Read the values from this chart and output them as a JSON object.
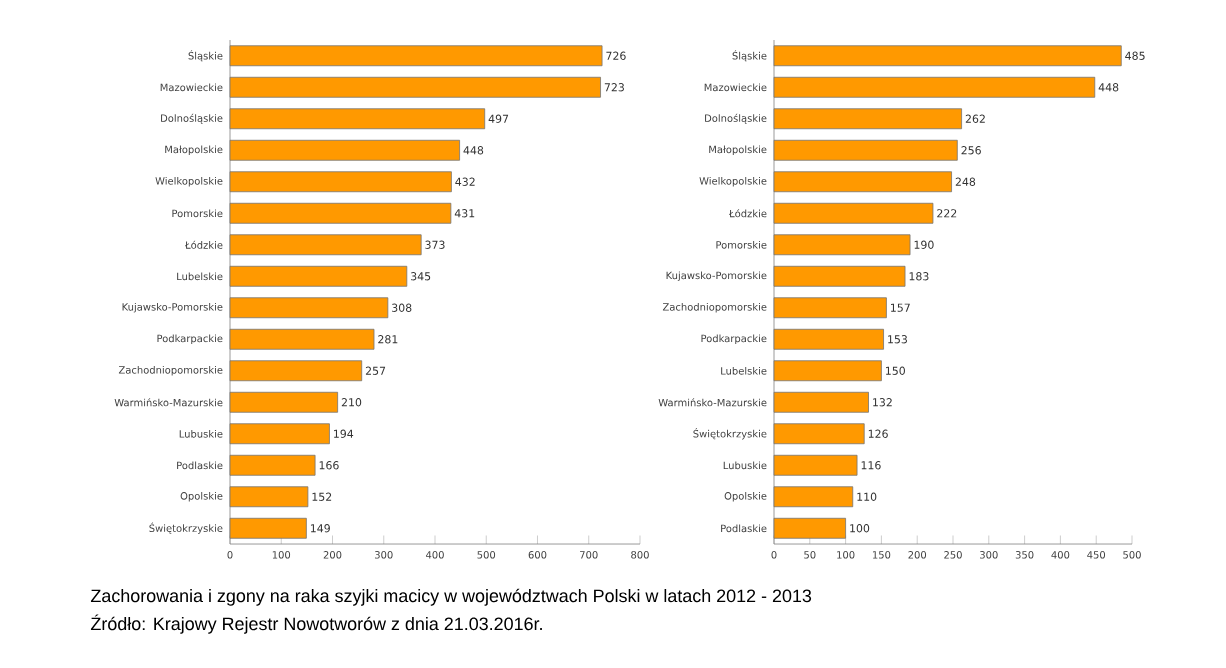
{
  "chart_data": [
    {
      "type": "bar",
      "orientation": "horizontal",
      "categories": [
        "Śląskie",
        "Mazowieckie",
        "Dolnośląskie",
        "Małopolskie",
        "Wielkopolskie",
        "Pomorskie",
        "Łódzkie",
        "Lubelskie",
        "Kujawsko-Pomorskie",
        "Podkarpackie",
        "Zachodniopomorskie",
        "Warmińsko-Mazurskie",
        "Lubuskie",
        "Podlaskie",
        "Opolskie",
        "Świętokrzyskie"
      ],
      "values": [
        726,
        723,
        497,
        448,
        432,
        431,
        373,
        345,
        308,
        281,
        257,
        210,
        194,
        166,
        152,
        149
      ],
      "color": "#ff9900",
      "data_labels": true,
      "xlim": [
        0,
        800
      ],
      "xticks": [
        0,
        100,
        200,
        300,
        400,
        500,
        600,
        700,
        800
      ],
      "annotations": [
        "Zachorowania i zgony  na raka szyjki macicy w województwach Polski w latach 2012 - 2013",
        "Źródło: Krajowy Rejestr Nowotworów z dnia 21.03.2016r."
      ]
    },
    {
      "type": "bar",
      "orientation": "horizontal",
      "categories": [
        "Śląskie",
        "Mazowieckie",
        "Dolnośląskie",
        "Małopolskie",
        "Wielkopolskie",
        "Łódzkie",
        "Pomorskie",
        "Kujawsko-Pomorskie",
        "Zachodniopomorskie",
        "Podkarpackie",
        "Lubelskie",
        "Warmińsko-Mazurskie",
        "Świętokrzyskie",
        "Lubuskie",
        "Opolskie",
        "Podlaskie"
      ],
      "values": [
        485,
        448,
        262,
        256,
        248,
        222,
        190,
        183,
        157,
        153,
        150,
        132,
        126,
        116,
        110,
        100
      ],
      "color": "#ff9900",
      "data_labels": true,
      "xlim": [
        0,
        500
      ],
      "xticks": [
        0,
        50,
        100,
        150,
        200,
        250,
        300,
        350,
        400,
        450,
        500
      ]
    }
  ]
}
